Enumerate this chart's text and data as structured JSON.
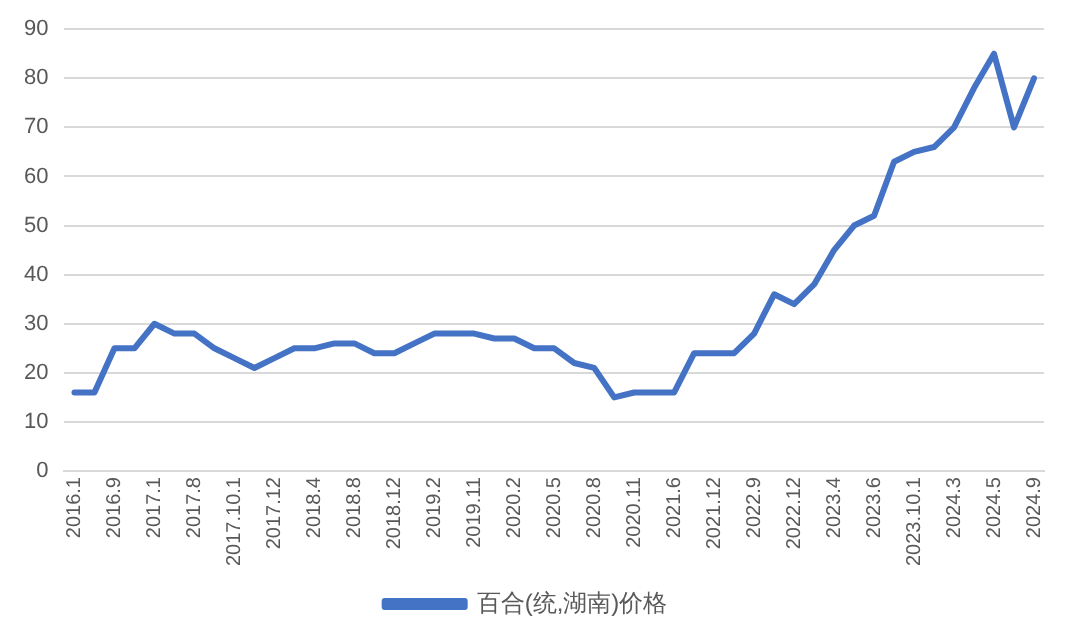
{
  "chart_data": {
    "type": "line",
    "categories": [
      "2016.1",
      null,
      "2016.9",
      null,
      "2017.1",
      null,
      "2017.8",
      null,
      "2017.10.1",
      null,
      "2017.12",
      null,
      "2018.4",
      null,
      "2018.8",
      null,
      "2018.12",
      null,
      "2019.2",
      null,
      "2019.11",
      null,
      "2020.2",
      null,
      "2020.5",
      null,
      "2020.8",
      null,
      "2020.11",
      null,
      "2021.6",
      null,
      "2021.12",
      null,
      "2022.9",
      null,
      "2022.12",
      null,
      "2023.4",
      null,
      "2023.6",
      null,
      "2023.10.1",
      null,
      "2024.3",
      null,
      "2024.5",
      null,
      "2024.9"
    ],
    "series": [
      {
        "name": "百合(统,湖南)价格",
        "color": "#4472c4",
        "values": [
          16,
          16,
          25,
          25,
          30,
          28,
          28,
          25,
          23,
          21,
          23,
          25,
          25,
          26,
          26,
          24,
          24,
          26,
          28,
          28,
          28,
          27,
          27,
          25,
          25,
          22,
          21,
          15,
          16,
          16,
          16,
          24,
          24,
          24,
          28,
          36,
          34,
          38,
          45,
          50,
          52,
          63,
          65,
          66,
          70,
          78,
          85,
          70,
          80
        ]
      }
    ],
    "ylim": [
      0,
      90
    ],
    "yticks": [
      0,
      10,
      20,
      30,
      40,
      50,
      60,
      70,
      80,
      90
    ],
    "grid": "y",
    "legend": "bottom",
    "marker": "none",
    "line_style": "solid"
  }
}
